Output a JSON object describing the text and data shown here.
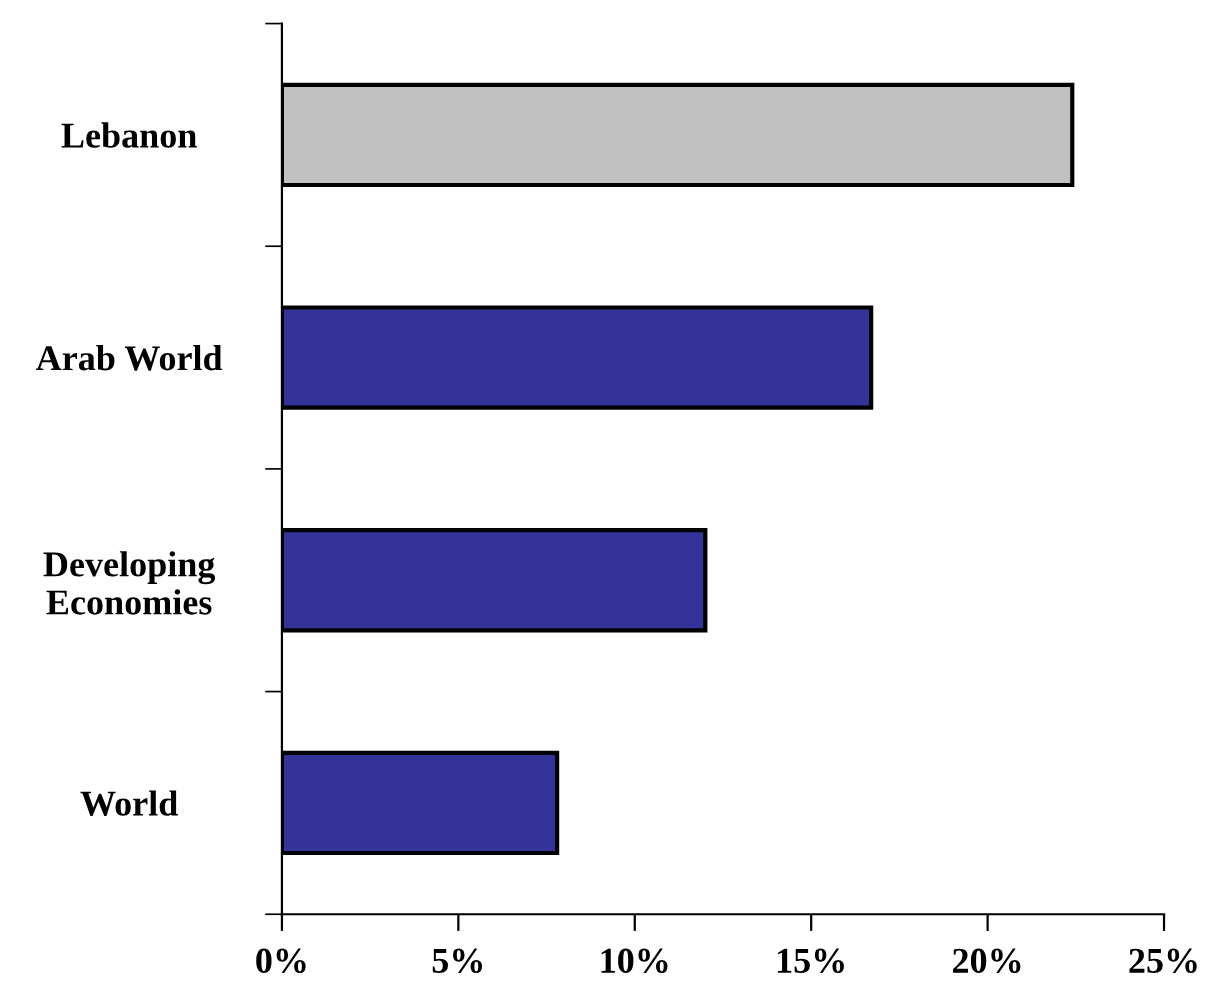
{
  "chart_data": {
    "type": "bar",
    "orientation": "horizontal",
    "categories": [
      "Lebanon",
      "Arab World",
      "Developing\nEconomies",
      "World"
    ],
    "values": [
      22.4,
      16.7,
      12.0,
      7.8
    ],
    "colors": [
      "#c0c0c0",
      "#333399",
      "#333399",
      "#333399"
    ],
    "xlim": [
      0,
      25
    ],
    "xticks": [
      {
        "value": 0,
        "label": "0%"
      },
      {
        "value": 5,
        "label": "5%"
      },
      {
        "value": 10,
        "label": "10%"
      },
      {
        "value": 15,
        "label": "15%"
      },
      {
        "value": 20,
        "label": "20%"
      },
      {
        "value": 25,
        "label": "25%"
      }
    ],
    "grid": false,
    "legend": false
  }
}
